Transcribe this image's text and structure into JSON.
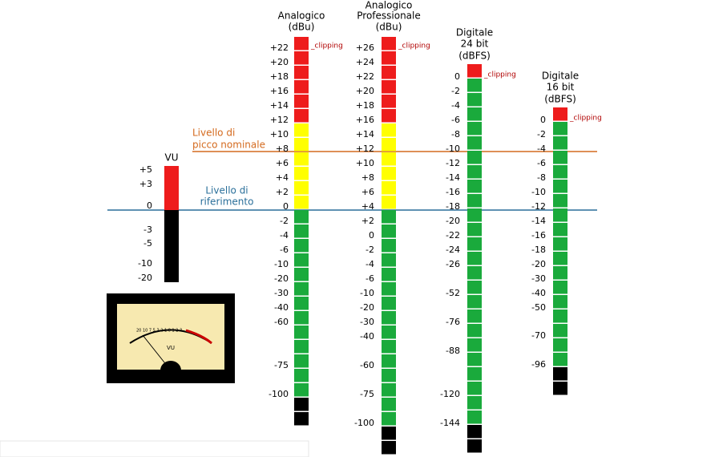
{
  "vu": {
    "title": "VU",
    "labels": [
      "+5",
      "+3",
      "0",
      "-3",
      "-5",
      "-10",
      "-20"
    ]
  },
  "columns": [
    {
      "title": [
        "Analogico",
        "(dBu)"
      ],
      "clipping": "_clipping",
      "labels": [
        "+22",
        "+20",
        "+18",
        "+16",
        "+14",
        "+12",
        "+10",
        "+8",
        "+6",
        "+4",
        "+2",
        "0",
        "-2",
        "-4",
        "-6",
        "-10",
        "-20",
        "-30",
        "-40",
        "-60",
        "-75",
        "-100"
      ]
    },
    {
      "title": [
        "Analogico",
        "Professionale",
        "(dBu)"
      ],
      "clipping": "_clipping",
      "labels": [
        "+26",
        "+24",
        "+22",
        "+20",
        "+18",
        "+16",
        "+14",
        "+12",
        "+10",
        "+8",
        "+6",
        "+4",
        "+2",
        "0",
        "-2",
        "-4",
        "-6",
        "-10",
        "-20",
        "-30",
        "-40",
        "-60",
        "-75",
        "-100"
      ]
    },
    {
      "title": [
        "Digitale",
        "24 bit",
        "(dBFS)"
      ],
      "clipping": "_clipping",
      "labels": [
        "0",
        "-2",
        "-4",
        "-6",
        "-8",
        "-10",
        "-12",
        "-14",
        "-16",
        "-18",
        "-20",
        "-22",
        "-24",
        "-26",
        "-52",
        "-76",
        "-88",
        "-120",
        "-144"
      ]
    },
    {
      "title": [
        "Digitale",
        "16 bit",
        "(dBFS)"
      ],
      "clipping": "_clipping",
      "labels": [
        "0",
        "-2",
        "-4",
        "-6",
        "-8",
        "-10",
        "-12",
        "-14",
        "-16",
        "-18",
        "-20",
        "-30",
        "-40",
        "-50",
        "-70",
        "-96"
      ]
    }
  ],
  "annotations": {
    "peak": [
      "Livello di",
      "picco nominale"
    ],
    "reference": [
      "Livello di",
      "riferimento"
    ]
  }
}
